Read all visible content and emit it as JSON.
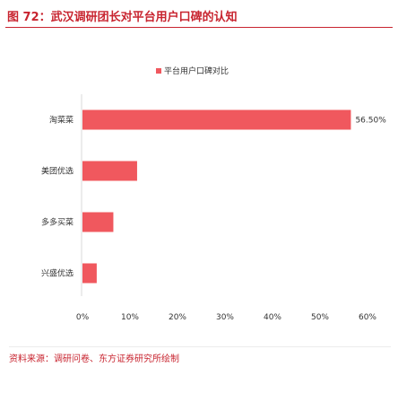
{
  "figure": {
    "title": "图 72：武汉调研团长对平台用户口碑的认知",
    "source": "资料来源：调研问卷、东方证券研究所绘制"
  },
  "colors": {
    "accent": "#c8242f",
    "bar": "#f0585e"
  },
  "chart_data": {
    "type": "bar",
    "orientation": "horizontal",
    "categories": [
      "淘菜菜",
      "美团优选",
      "多多买菜",
      "兴盛优选"
    ],
    "series": [
      {
        "name": "平台用户口碑对比",
        "values": [
          56.5,
          11.5,
          6.5,
          3.0
        ]
      }
    ],
    "data_labels": [
      "56.50%",
      "",
      "",
      ""
    ],
    "xlim": [
      0,
      60
    ],
    "xticks": [
      "0%",
      "10%",
      "20%",
      "30%",
      "40%",
      "50%",
      "60%"
    ],
    "legend_position": "top",
    "grid": false
  }
}
